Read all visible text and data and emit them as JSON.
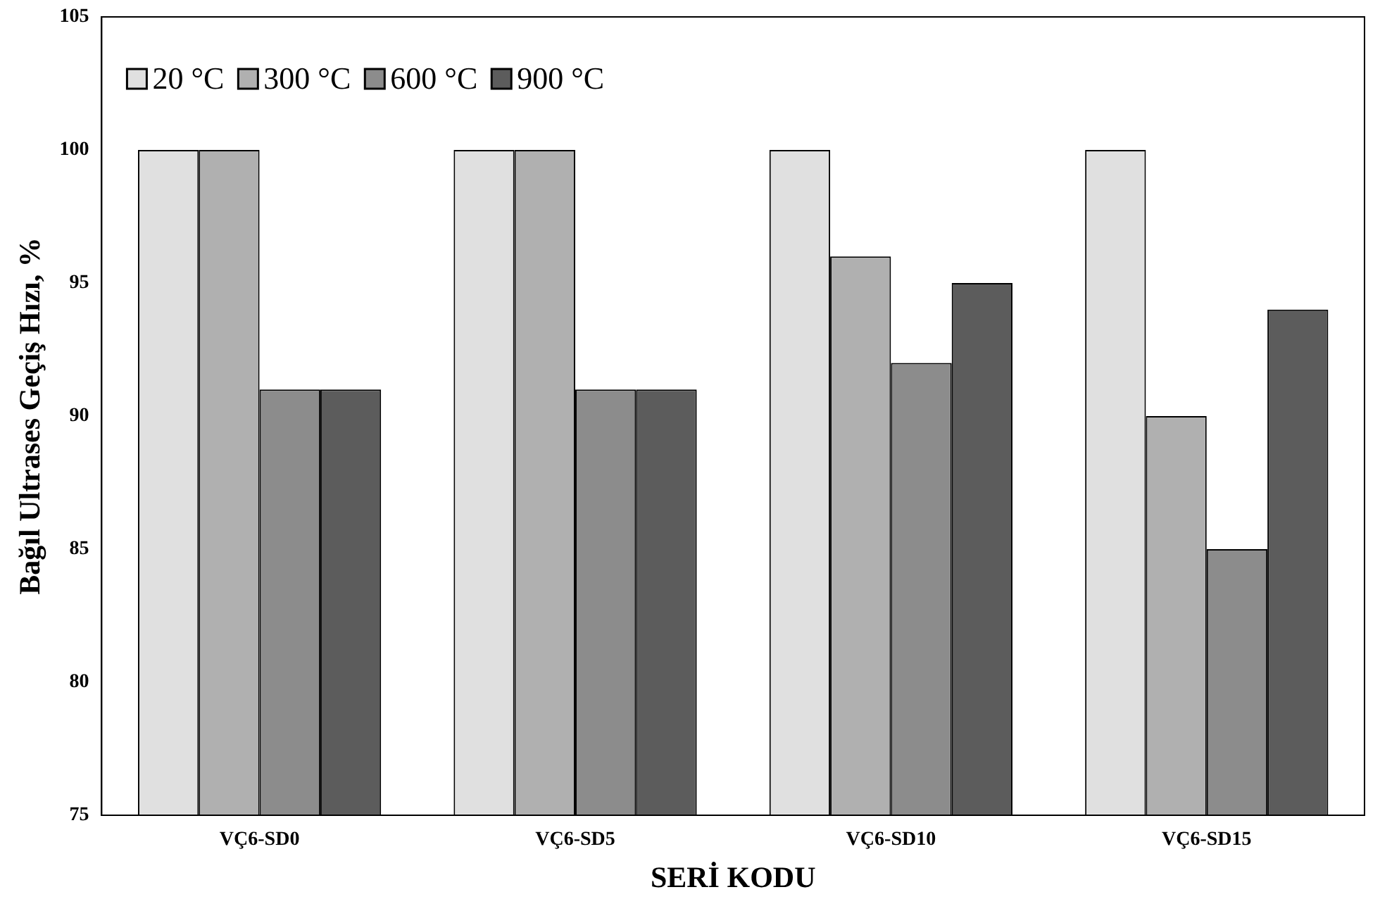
{
  "chart_data": {
    "type": "bar",
    "xlabel": "SERİ KODU",
    "ylabel": "Bağıl Ultrases Geçiş Hızı, %",
    "categories": [
      "VÇ6-SD0",
      "VÇ6-SD5",
      "VÇ6-SD10",
      "VÇ6-SD15"
    ],
    "series": [
      {
        "name": "20 °C",
        "color": "#e0e0e0",
        "values": [
          100,
          100,
          100,
          100
        ]
      },
      {
        "name": "300 °C",
        "color": "#b0b0b0",
        "values": [
          100,
          100,
          96,
          90
        ]
      },
      {
        "name": "600 °C",
        "color": "#8c8c8c",
        "values": [
          91,
          91,
          92,
          85
        ]
      },
      {
        "name": "900 °C",
        "color": "#5c5c5c",
        "values": [
          91,
          91,
          95,
          94
        ]
      }
    ],
    "ylim": [
      75,
      105
    ],
    "yticks": [
      75,
      80,
      85,
      90,
      95,
      100,
      105
    ],
    "grid": false,
    "legend": "top left"
  }
}
